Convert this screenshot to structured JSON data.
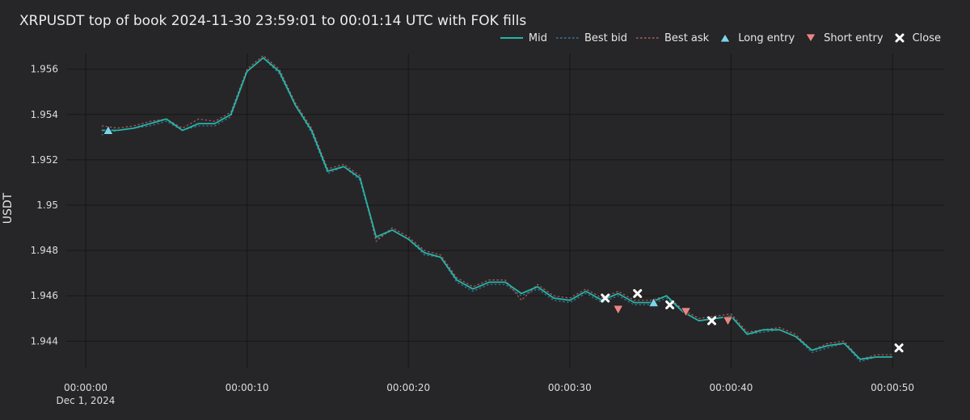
{
  "chart_data": {
    "type": "line",
    "title": "XRPUSDT top of book 2024-11-30 23:59:01 to 00:01:14 UTC with FOK fills",
    "ylabel": "USDT",
    "xlabel": "",
    "xlim": [
      -1.2,
      53.2
    ],
    "ylim": [
      1.9428,
      1.9567
    ],
    "yticks": [
      1.944,
      1.946,
      1.948,
      1.95,
      1.952,
      1.954,
      1.956
    ],
    "ytick_labels": [
      "1.944",
      "1.946",
      "1.948",
      "1.95",
      "1.952",
      "1.954",
      "1.956"
    ],
    "xticks": [
      0,
      10,
      20,
      30,
      40,
      50
    ],
    "xtick_labels": [
      "00:00:00",
      "00:00:10",
      "00:00:20",
      "00:00:30",
      "00:00:40",
      "00:00:50"
    ],
    "xtick_sublabel": "Dec 1, 2024",
    "grid": true,
    "legend_position": "top-right",
    "x": [
      1,
      2,
      3,
      4,
      5,
      6,
      7,
      8,
      9,
      10,
      11,
      12,
      13,
      14,
      15,
      16,
      17,
      18,
      19,
      20,
      21,
      22,
      23,
      24,
      25,
      26,
      27,
      28,
      29,
      30,
      31,
      32,
      33,
      34,
      35,
      36,
      37,
      38,
      39,
      40,
      41,
      42,
      43,
      44,
      45,
      46,
      47,
      48,
      49,
      50
    ],
    "series": [
      {
        "name": "Mid",
        "style": "solid",
        "color": "#26b5a8",
        "values": [
          1.9533,
          1.9533,
          1.9534,
          1.9536,
          1.9538,
          1.9533,
          1.9536,
          1.9536,
          1.954,
          1.9559,
          1.9565,
          1.9559,
          1.9544,
          1.9533,
          1.9515,
          1.9517,
          1.9512,
          1.9486,
          1.9489,
          1.9485,
          1.9479,
          1.9477,
          1.9467,
          1.9463,
          1.9466,
          1.9466,
          1.9461,
          1.9464,
          1.9459,
          1.9458,
          1.9462,
          1.9458,
          1.9461,
          1.9457,
          1.9457,
          1.946,
          1.9453,
          1.9449,
          1.945,
          1.9451,
          1.9443,
          1.9445,
          1.9445,
          1.9442,
          1.9436,
          1.9438,
          1.9439,
          1.9432,
          1.9433,
          1.9433
        ]
      },
      {
        "name": "Best bid",
        "style": "dotted",
        "color": "#2f7f99",
        "values": [
          1.9531,
          1.9533,
          1.9534,
          1.9535,
          1.9537,
          1.9533,
          1.9535,
          1.9535,
          1.9539,
          1.9559,
          1.9565,
          1.9558,
          1.9544,
          1.9532,
          1.9514,
          1.9517,
          1.9511,
          1.9485,
          1.9489,
          1.9485,
          1.9478,
          1.9477,
          1.9466,
          1.9462,
          1.9465,
          1.9465,
          1.946,
          1.9463,
          1.9458,
          1.9457,
          1.9461,
          1.9457,
          1.946,
          1.9456,
          1.9456,
          1.9459,
          1.9453,
          1.9449,
          1.945,
          1.9451,
          1.9443,
          1.9444,
          1.9445,
          1.9442,
          1.9435,
          1.9437,
          1.9439,
          1.9431,
          1.9433,
          1.9433
        ]
      },
      {
        "name": "Best ask",
        "style": "dotted",
        "color": "#b35c5c",
        "values": [
          1.9535,
          1.9534,
          1.9535,
          1.9537,
          1.9538,
          1.9534,
          1.9538,
          1.9537,
          1.9541,
          1.956,
          1.9566,
          1.956,
          1.9545,
          1.9534,
          1.9516,
          1.9518,
          1.9513,
          1.9484,
          1.949,
          1.9486,
          1.948,
          1.9478,
          1.9468,
          1.9464,
          1.9467,
          1.9467,
          1.9458,
          1.9465,
          1.946,
          1.9459,
          1.9463,
          1.9459,
          1.9462,
          1.9458,
          1.9458,
          1.946,
          1.9454,
          1.945,
          1.9451,
          1.9452,
          1.9444,
          1.9445,
          1.9446,
          1.9443,
          1.9436,
          1.9439,
          1.944,
          1.9432,
          1.9434,
          1.9434
        ]
      }
    ],
    "markers": [
      {
        "name": "Long entry",
        "shape": "triangle-up",
        "color": "#7fd2ea",
        "points": [
          [
            1.4,
            1.9533
          ],
          [
            35.2,
            1.9457
          ]
        ]
      },
      {
        "name": "Short entry",
        "shape": "triangle-down",
        "color": "#ea8585",
        "points": [
          [
            33.0,
            1.9454
          ],
          [
            37.2,
            1.9453
          ],
          [
            39.8,
            1.9449
          ]
        ]
      },
      {
        "name": "Close",
        "shape": "x",
        "color": "#ffffff",
        "points": [
          [
            32.2,
            1.9459
          ],
          [
            34.2,
            1.9461
          ],
          [
            36.2,
            1.9456
          ],
          [
            38.8,
            1.9449
          ],
          [
            50.4,
            1.9437
          ]
        ]
      }
    ]
  }
}
